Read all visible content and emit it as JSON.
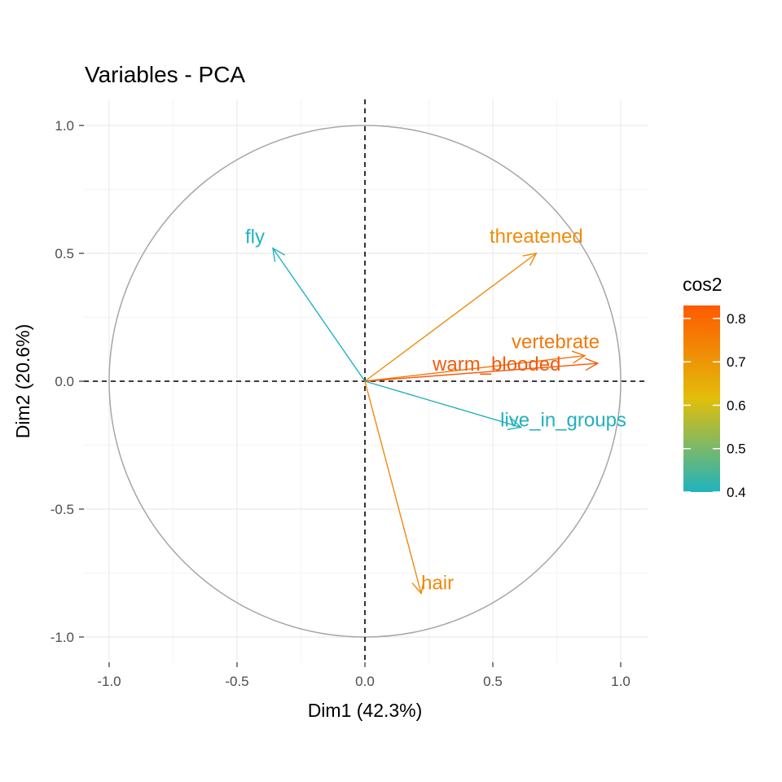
{
  "chart_data": {
    "type": "pca-variable-correlation-circle",
    "title": "Variables - PCA",
    "xlabel": "Dim1 (42.3%)",
    "ylabel": "Dim2 (20.6%)",
    "xlim": [
      -1.0,
      1.0
    ],
    "ylim": [
      -1.0,
      1.0
    ],
    "x_ticks": [
      "-1.0",
      "-0.5",
      "0.0",
      "0.5",
      "1.0"
    ],
    "y_ticks": [
      "-1.0",
      "-0.5",
      "0.0",
      "0.5",
      "1.0"
    ],
    "grid": true,
    "unit_circle": true,
    "reference_lines": [
      "x = 0",
      "y = 0"
    ],
    "variables": [
      {
        "name": "fly",
        "x": -0.36,
        "y": 0.52,
        "cos2": 0.4,
        "color": "#1fb3bf"
      },
      {
        "name": "threatened",
        "x": 0.67,
        "y": 0.5,
        "cos2": 0.7,
        "color": "#ee8c0a"
      },
      {
        "name": "vertebrate",
        "x": 0.86,
        "y": 0.1,
        "cos2": 0.75,
        "color": "#f2780a"
      },
      {
        "name": "warm_blooded",
        "x": 0.91,
        "y": 0.07,
        "cos2": 0.83,
        "color": "#f55a0c"
      },
      {
        "name": "live_in_groups",
        "x": 0.61,
        "y": -0.18,
        "cos2": 0.41,
        "color": "#22b0bd"
      },
      {
        "name": "hair",
        "x": 0.22,
        "y": -0.83,
        "cos2": 0.74,
        "color": "#ef8a0c"
      }
    ],
    "legend": {
      "title": "cos2",
      "position": "right",
      "range": [
        0.4,
        0.83
      ],
      "ticks": [
        "0.4",
        "0.5",
        "0.6",
        "0.7",
        "0.8"
      ],
      "gradient": [
        "#1fb3bf",
        "#e2be0a",
        "#fe5a00"
      ]
    }
  }
}
